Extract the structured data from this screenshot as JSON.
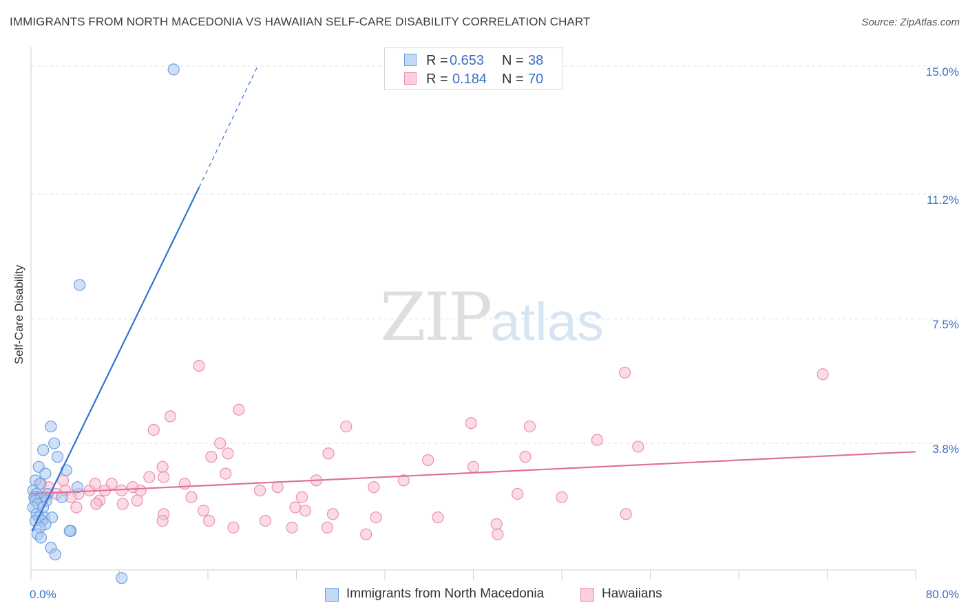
{
  "header": {
    "title": "IMMIGRANTS FROM NORTH MACEDONIA VS HAWAIIAN SELF-CARE DISABILITY CORRELATION CHART",
    "source": "Source: ZipAtlas.com"
  },
  "watermark": {
    "zip": "ZIP",
    "atlas": "atlas"
  },
  "legend": {
    "rows": [
      {
        "r_label": "R =",
        "r_value": "0.653",
        "n_label": "N =",
        "n_value": "38"
      },
      {
        "r_label": "R =",
        "r_value": "0.184",
        "n_label": "N =",
        "n_value": "70"
      }
    ]
  },
  "colors": {
    "blue_fill": "#a9c9f0",
    "blue_stroke": "#6e9ee0",
    "blue_line": "#2f72d1",
    "pink_fill": "#f7bfd0",
    "pink_stroke": "#eb8fae",
    "pink_line": "#e0709a",
    "tick_label": "#3a6fc4",
    "grid": "#e2e2e2"
  },
  "chart_data": {
    "type": "scatter",
    "title": "IMMIGRANTS FROM NORTH MACEDONIA VS HAWAIIAN SELF-CARE DISABILITY CORRELATION CHART",
    "xlabel": "",
    "ylabel": "Self-Care Disability",
    "xlim": [
      0,
      80
    ],
    "ylim": [
      0,
      15.6
    ],
    "x_tick_labels": [
      "0.0%",
      "80.0%"
    ],
    "y_ticks": [
      3.8,
      7.5,
      11.2,
      15.0
    ],
    "y_tick_labels": [
      "3.8%",
      "7.5%",
      "11.2%",
      "15.0%"
    ],
    "legend_position": "top-center",
    "series": [
      {
        "name": "Immigrants from North Macedonia",
        "R": 0.653,
        "N": 38,
        "trend": {
          "x0": 0.1,
          "y0": 1.2,
          "x1": 15.2,
          "y1": 11.4,
          "dash_to_x": 20.5,
          "dash_to_y": 15.0
        },
        "points": [
          [
            12.9,
            14.9
          ],
          [
            4.4,
            8.5
          ],
          [
            1.8,
            4.3
          ],
          [
            2.1,
            3.8
          ],
          [
            1.1,
            3.6
          ],
          [
            2.4,
            3.4
          ],
          [
            0.7,
            3.1
          ],
          [
            3.2,
            3.0
          ],
          [
            1.3,
            2.9
          ],
          [
            0.4,
            2.7
          ],
          [
            0.8,
            2.6
          ],
          [
            4.2,
            2.5
          ],
          [
            0.2,
            2.4
          ],
          [
            0.5,
            2.3
          ],
          [
            1.5,
            2.3
          ],
          [
            0.3,
            2.2
          ],
          [
            0.9,
            2.2
          ],
          [
            2.8,
            2.2
          ],
          [
            1.4,
            2.1
          ],
          [
            0.4,
            2.1
          ],
          [
            0.6,
            2.0
          ],
          [
            1.1,
            1.9
          ],
          [
            0.2,
            1.9
          ],
          [
            0.5,
            1.7
          ],
          [
            1.2,
            1.6
          ],
          [
            0.7,
            1.6
          ],
          [
            1.9,
            1.6
          ],
          [
            0.4,
            1.5
          ],
          [
            1.0,
            1.5
          ],
          [
            1.3,
            1.4
          ],
          [
            0.8,
            1.3
          ],
          [
            3.6,
            1.2
          ],
          [
            3.5,
            1.2
          ],
          [
            0.6,
            1.1
          ],
          [
            0.9,
            1.0
          ],
          [
            1.8,
            0.7
          ],
          [
            2.2,
            0.5
          ],
          [
            8.2,
            -0.2
          ]
        ]
      },
      {
        "name": "Hawaiians",
        "R": 0.184,
        "N": 70,
        "trend": {
          "x0": 0,
          "y0": 2.3,
          "x1": 80,
          "y1": 3.55
        },
        "points": [
          [
            15.2,
            6.1
          ],
          [
            53.7,
            5.9
          ],
          [
            71.6,
            5.85
          ],
          [
            18.8,
            4.8
          ],
          [
            12.6,
            4.6
          ],
          [
            39.8,
            4.4
          ],
          [
            28.5,
            4.3
          ],
          [
            11.1,
            4.2
          ],
          [
            45.1,
            4.3
          ],
          [
            51.2,
            3.9
          ],
          [
            17.1,
            3.8
          ],
          [
            54.9,
            3.7
          ],
          [
            17.8,
            3.5
          ],
          [
            26.9,
            3.5
          ],
          [
            16.3,
            3.4
          ],
          [
            44.7,
            3.4
          ],
          [
            35.9,
            3.3
          ],
          [
            40.0,
            3.1
          ],
          [
            11.9,
            3.1
          ],
          [
            17.6,
            2.9
          ],
          [
            10.7,
            2.8
          ],
          [
            12.0,
            2.8
          ],
          [
            25.8,
            2.7
          ],
          [
            33.7,
            2.7
          ],
          [
            7.3,
            2.6
          ],
          [
            13.9,
            2.6
          ],
          [
            22.3,
            2.5
          ],
          [
            31.0,
            2.5
          ],
          [
            0.9,
            2.6
          ],
          [
            1.6,
            2.5
          ],
          [
            3.1,
            2.4
          ],
          [
            5.3,
            2.4
          ],
          [
            6.7,
            2.4
          ],
          [
            8.2,
            2.4
          ],
          [
            9.9,
            2.4
          ],
          [
            2.3,
            2.3
          ],
          [
            4.3,
            2.3
          ],
          [
            14.5,
            2.2
          ],
          [
            0.4,
            2.2
          ],
          [
            44.0,
            2.3
          ],
          [
            48.0,
            2.2
          ],
          [
            1.3,
            2.2
          ],
          [
            3.6,
            2.2
          ],
          [
            9.6,
            2.1
          ],
          [
            6.2,
            2.1
          ],
          [
            24.5,
            2.2
          ],
          [
            8.3,
            2.0
          ],
          [
            5.9,
            2.0
          ],
          [
            23.9,
            1.9
          ],
          [
            24.8,
            1.8
          ],
          [
            15.6,
            1.8
          ],
          [
            4.1,
            1.9
          ],
          [
            12.0,
            1.7
          ],
          [
            27.3,
            1.7
          ],
          [
            31.2,
            1.6
          ],
          [
            53.8,
            1.7
          ],
          [
            11.9,
            1.5
          ],
          [
            16.1,
            1.5
          ],
          [
            36.8,
            1.6
          ],
          [
            21.2,
            1.5
          ],
          [
            42.1,
            1.4
          ],
          [
            23.6,
            1.3
          ],
          [
            26.8,
            1.3
          ],
          [
            18.3,
            1.3
          ],
          [
            30.3,
            1.1
          ],
          [
            42.2,
            1.1
          ],
          [
            5.8,
            2.6
          ],
          [
            9.2,
            2.5
          ],
          [
            2.9,
            2.7
          ],
          [
            20.7,
            2.4
          ]
        ]
      }
    ]
  },
  "bottom_legend": {
    "items": [
      {
        "label": "Immigrants from North Macedonia"
      },
      {
        "label": "Hawaiians"
      }
    ]
  }
}
